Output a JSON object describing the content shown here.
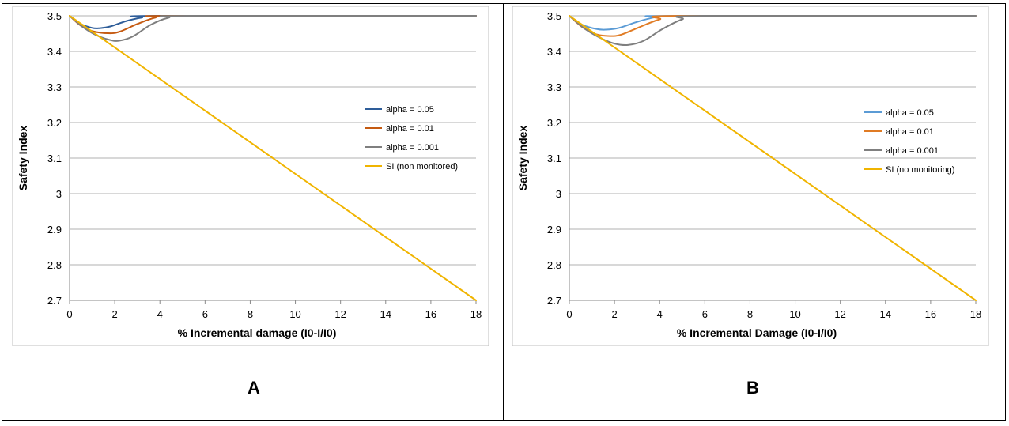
{
  "panels": {
    "a": {
      "label": "A"
    },
    "b": {
      "label": "B"
    }
  },
  "chart_data": [
    {
      "type": "line",
      "panel": "A",
      "title": "",
      "xlabel": "% Incremental damage (I0-I/I0)",
      "ylabel": "Safety Index",
      "xlim": [
        0,
        18
      ],
      "ylim": [
        2.7,
        3.5
      ],
      "xticks": [
        0,
        2,
        4,
        6,
        8,
        10,
        12,
        14,
        16,
        18
      ],
      "yticks": [
        2.7,
        2.8,
        2.9,
        3,
        3.1,
        3.2,
        3.3,
        3.4,
        3.5
      ],
      "ytick_labels": [
        "2.7",
        "2.8",
        "2.9",
        "3",
        "3.1",
        "3.2",
        "3.3",
        "3.4",
        "3.5"
      ],
      "grid": true,
      "legend_position": "right-middle",
      "series": [
        {
          "name": "alpha = 0.05",
          "color": "#2E5D99",
          "x": [
            0,
            0.5,
            1,
            1.3,
            1.8,
            2.5,
            3.2,
            4,
            18
          ],
          "y": [
            3.5,
            3.477,
            3.466,
            3.465,
            3.47,
            3.485,
            3.495,
            3.5,
            3.5
          ]
        },
        {
          "name": "alpha = 0.01",
          "color": "#C55A11",
          "x": [
            0,
            0.5,
            1,
            1.7,
            2.2,
            3,
            3.8,
            4.6,
            18
          ],
          "y": [
            3.5,
            3.472,
            3.457,
            3.451,
            3.455,
            3.477,
            3.495,
            3.5,
            3.5
          ]
        },
        {
          "name": "alpha = 0.001",
          "color": "#7F7F7F",
          "x": [
            0,
            0.6,
            1.2,
            1.8,
            2.2,
            2.8,
            3.6,
            4.4,
            5.2,
            18
          ],
          "y": [
            3.5,
            3.468,
            3.445,
            3.432,
            3.43,
            3.442,
            3.475,
            3.495,
            3.5,
            3.5
          ]
        },
        {
          "name": "SI (non monitored)",
          "color": "#F0B400",
          "x": [
            0,
            18
          ],
          "y": [
            3.5,
            2.7
          ]
        }
      ]
    },
    {
      "type": "line",
      "panel": "B",
      "title": "",
      "xlabel": "% Incremental Damage (I0-I/I0)",
      "ylabel": "Safety Index",
      "xlim": [
        0,
        18
      ],
      "ylim": [
        2.7,
        3.5
      ],
      "xticks": [
        0,
        2,
        4,
        6,
        8,
        10,
        12,
        14,
        16,
        18
      ],
      "yticks": [
        2.7,
        2.8,
        2.9,
        3,
        3.1,
        3.2,
        3.3,
        3.4,
        3.5
      ],
      "ytick_labels": [
        "2.7",
        "2.8",
        "2.9",
        "3",
        "3.1",
        "3.2",
        "3.3",
        "3.4",
        "3.5"
      ],
      "grid": true,
      "legend_position": "right-middle",
      "series": [
        {
          "name": "alpha = 0.05",
          "color": "#5B9BD5",
          "x": [
            0,
            0.6,
            1.2,
            1.6,
            2.2,
            3,
            3.8,
            4.6,
            18
          ],
          "y": [
            3.5,
            3.474,
            3.463,
            3.461,
            3.466,
            3.483,
            3.496,
            3.5,
            3.5
          ]
        },
        {
          "name": "alpha = 0.01",
          "color": "#E07B24",
          "x": [
            0,
            0.6,
            1.2,
            1.8,
            2.3,
            3.1,
            4,
            4.9,
            18
          ],
          "y": [
            3.5,
            3.467,
            3.448,
            3.443,
            3.447,
            3.468,
            3.49,
            3.5,
            3.5
          ]
        },
        {
          "name": "alpha = 0.001",
          "color": "#7F7F7F",
          "x": [
            0,
            0.7,
            1.4,
            2,
            2.6,
            3.3,
            4.1,
            5,
            5.9,
            18
          ],
          "y": [
            3.5,
            3.463,
            3.437,
            3.422,
            3.418,
            3.43,
            3.462,
            3.49,
            3.5,
            3.5
          ]
        },
        {
          "name": "SI (no monitoring)",
          "color": "#F0B400",
          "x": [
            0,
            18
          ],
          "y": [
            3.5,
            2.7
          ]
        }
      ]
    }
  ]
}
